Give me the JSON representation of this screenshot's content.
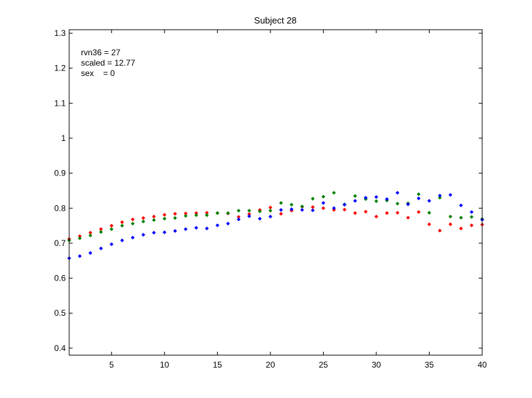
{
  "chart_data": {
    "type": "scatter",
    "title": "Subject 28",
    "xlabel": "",
    "ylabel": "",
    "xlim": [
      1,
      40
    ],
    "ylim": [
      0.38,
      1.31
    ],
    "xticks": [
      5,
      10,
      15,
      20,
      25,
      30,
      35,
      40
    ],
    "yticks": [
      "0.4",
      "0.5",
      "0.6",
      "0.7",
      "0.8",
      "0.9",
      "1",
      "1.1",
      "1.2",
      "1.3"
    ],
    "grid": false,
    "annotations": [
      "rvn36 = 27",
      "scaled = 12.77",
      "sex    = 0"
    ],
    "series": [
      {
        "color": "#ff0000",
        "x": [
          1,
          2,
          3,
          4,
          5,
          6,
          7,
          8,
          9,
          10,
          11,
          12,
          13,
          14,
          15,
          16,
          17,
          18,
          19,
          20,
          21,
          22,
          23,
          24,
          25,
          26,
          27,
          28,
          29,
          30,
          31,
          32,
          33,
          34,
          35,
          36,
          37,
          38,
          39,
          40
        ],
        "y": [
          0.712,
          0.72,
          0.73,
          0.74,
          0.75,
          0.76,
          0.768,
          0.772,
          0.776,
          0.781,
          0.784,
          0.785,
          0.786,
          0.787,
          0.786,
          0.785,
          0.775,
          0.783,
          0.795,
          0.802,
          0.784,
          0.793,
          0.804,
          0.803,
          0.8,
          0.795,
          0.796,
          0.786,
          0.79,
          0.776,
          0.786,
          0.787,
          0.773,
          0.789,
          0.754,
          0.736,
          0.754,
          0.742,
          0.751,
          0.753
        ]
      },
      {
        "color": "#008000",
        "x": [
          1,
          2,
          3,
          4,
          5,
          6,
          7,
          8,
          9,
          10,
          11,
          12,
          13,
          14,
          15,
          16,
          17,
          18,
          19,
          20,
          21,
          22,
          23,
          24,
          25,
          26,
          27,
          28,
          29,
          30,
          31,
          32,
          33,
          34,
          35,
          36,
          37,
          38,
          39,
          40
        ],
        "y": [
          0.708,
          0.714,
          0.722,
          0.732,
          0.74,
          0.75,
          0.756,
          0.762,
          0.766,
          0.77,
          0.772,
          0.778,
          0.78,
          0.78,
          0.786,
          0.786,
          0.793,
          0.793,
          0.791,
          0.793,
          0.815,
          0.81,
          0.805,
          0.827,
          0.833,
          0.844,
          0.811,
          0.835,
          0.826,
          0.82,
          0.822,
          0.813,
          0.814,
          0.84,
          0.787,
          0.83,
          0.776,
          0.773,
          0.775,
          0.769
        ]
      },
      {
        "color": "#0000ff",
        "x": [
          1,
          2,
          3,
          4,
          5,
          6,
          7,
          8,
          9,
          10,
          11,
          12,
          13,
          14,
          15,
          16,
          17,
          18,
          19,
          20,
          21,
          22,
          23,
          24,
          25,
          26,
          27,
          28,
          29,
          30,
          31,
          32,
          33,
          34,
          35,
          36,
          37,
          38,
          39,
          40
        ],
        "y": [
          0.657,
          0.663,
          0.672,
          0.685,
          0.697,
          0.708,
          0.716,
          0.724,
          0.73,
          0.731,
          0.735,
          0.74,
          0.744,
          0.742,
          0.751,
          0.756,
          0.768,
          0.777,
          0.77,
          0.776,
          0.795,
          0.797,
          0.795,
          0.794,
          0.815,
          0.8,
          0.81,
          0.821,
          0.83,
          0.832,
          0.826,
          0.844,
          0.811,
          0.828,
          0.821,
          0.836,
          0.838,
          0.808,
          0.789,
          0.767
        ]
      }
    ]
  }
}
